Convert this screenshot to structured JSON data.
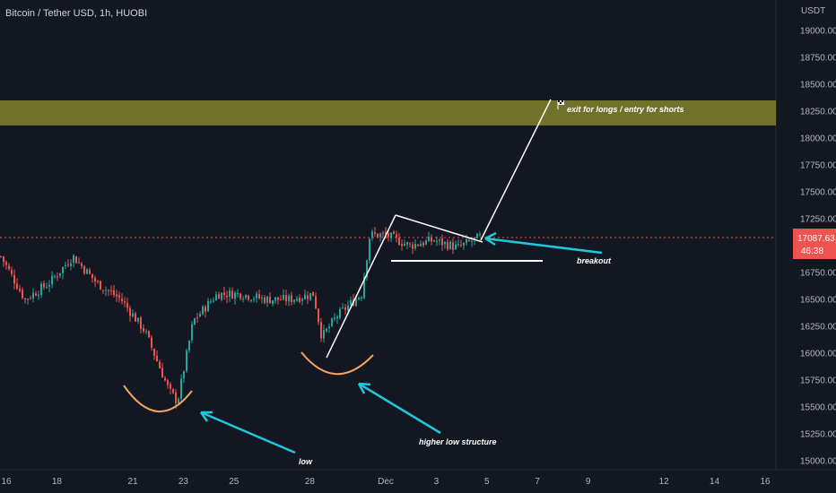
{
  "chart_data": {
    "type": "candlestick",
    "title": "Bitcoin / Tether USD, 1h, HUOBI",
    "y_unit_label": "USDT",
    "ylim": [
      14950,
      19200
    ],
    "y_ticks": [
      "19000.00",
      "18750.00",
      "18500.00",
      "18250.00",
      "18000.00",
      "17750.00",
      "17500.00",
      "17250.00",
      "17000.00",
      "16750.00",
      "16500.00",
      "16250.00",
      "16000.00",
      "15750.00",
      "15500.00",
      "15250.00",
      "15000.00"
    ],
    "x_ticks": [
      "16",
      "18",
      "21",
      "23",
      "25",
      "28",
      "Dec",
      "3",
      "5",
      "7",
      "9",
      "12",
      "14",
      "16"
    ],
    "last_price": "17087.63",
    "countdown": "46:38",
    "colors": {
      "up": "#26a69a",
      "down": "#ef5350",
      "zone": "#8b8b2e",
      "arc": "#f4a460",
      "arrow": "#1fc8d8"
    },
    "price_path": [
      {
        "date": "Nov 15",
        "price": 16900
      },
      {
        "date": "Nov 16",
        "price": 16500
      },
      {
        "date": "Nov 17",
        "price": 16650
      },
      {
        "date": "Nov 18",
        "price": 16900
      },
      {
        "date": "Nov 19",
        "price": 16650
      },
      {
        "date": "Nov 20",
        "price": 16500
      },
      {
        "date": "Nov 21",
        "price": 16200
      },
      {
        "date": "Nov 22",
        "price": 15650
      },
      {
        "date": "Nov 22",
        "price": 15550
      },
      {
        "date": "Nov 23",
        "price": 16300
      },
      {
        "date": "Nov 24",
        "price": 16550
      },
      {
        "date": "Nov 25",
        "price": 16550
      },
      {
        "date": "Nov 26",
        "price": 16500
      },
      {
        "date": "Nov 27",
        "price": 16500
      },
      {
        "date": "Nov 28",
        "price": 16550
      },
      {
        "date": "Nov 28",
        "price": 16150
      },
      {
        "date": "Nov 29",
        "price": 16350
      },
      {
        "date": "Nov 30",
        "price": 16550
      },
      {
        "date": "Nov 30",
        "price": 17100
      },
      {
        "date": "Dec 1",
        "price": 17100
      },
      {
        "date": "Dec 2",
        "price": 17000
      },
      {
        "date": "Dec 3",
        "price": 17050
      },
      {
        "date": "Dec 4",
        "price": 16980
      },
      {
        "date": "Dec 5",
        "price": 17087.63
      }
    ],
    "zone": {
      "from": 18130,
      "to": 18370,
      "label": "exit for longs / entry for shorts"
    },
    "support_line": {
      "price": 16910
    },
    "annotations": [
      "low",
      "higher low structure",
      "breakout"
    ]
  }
}
